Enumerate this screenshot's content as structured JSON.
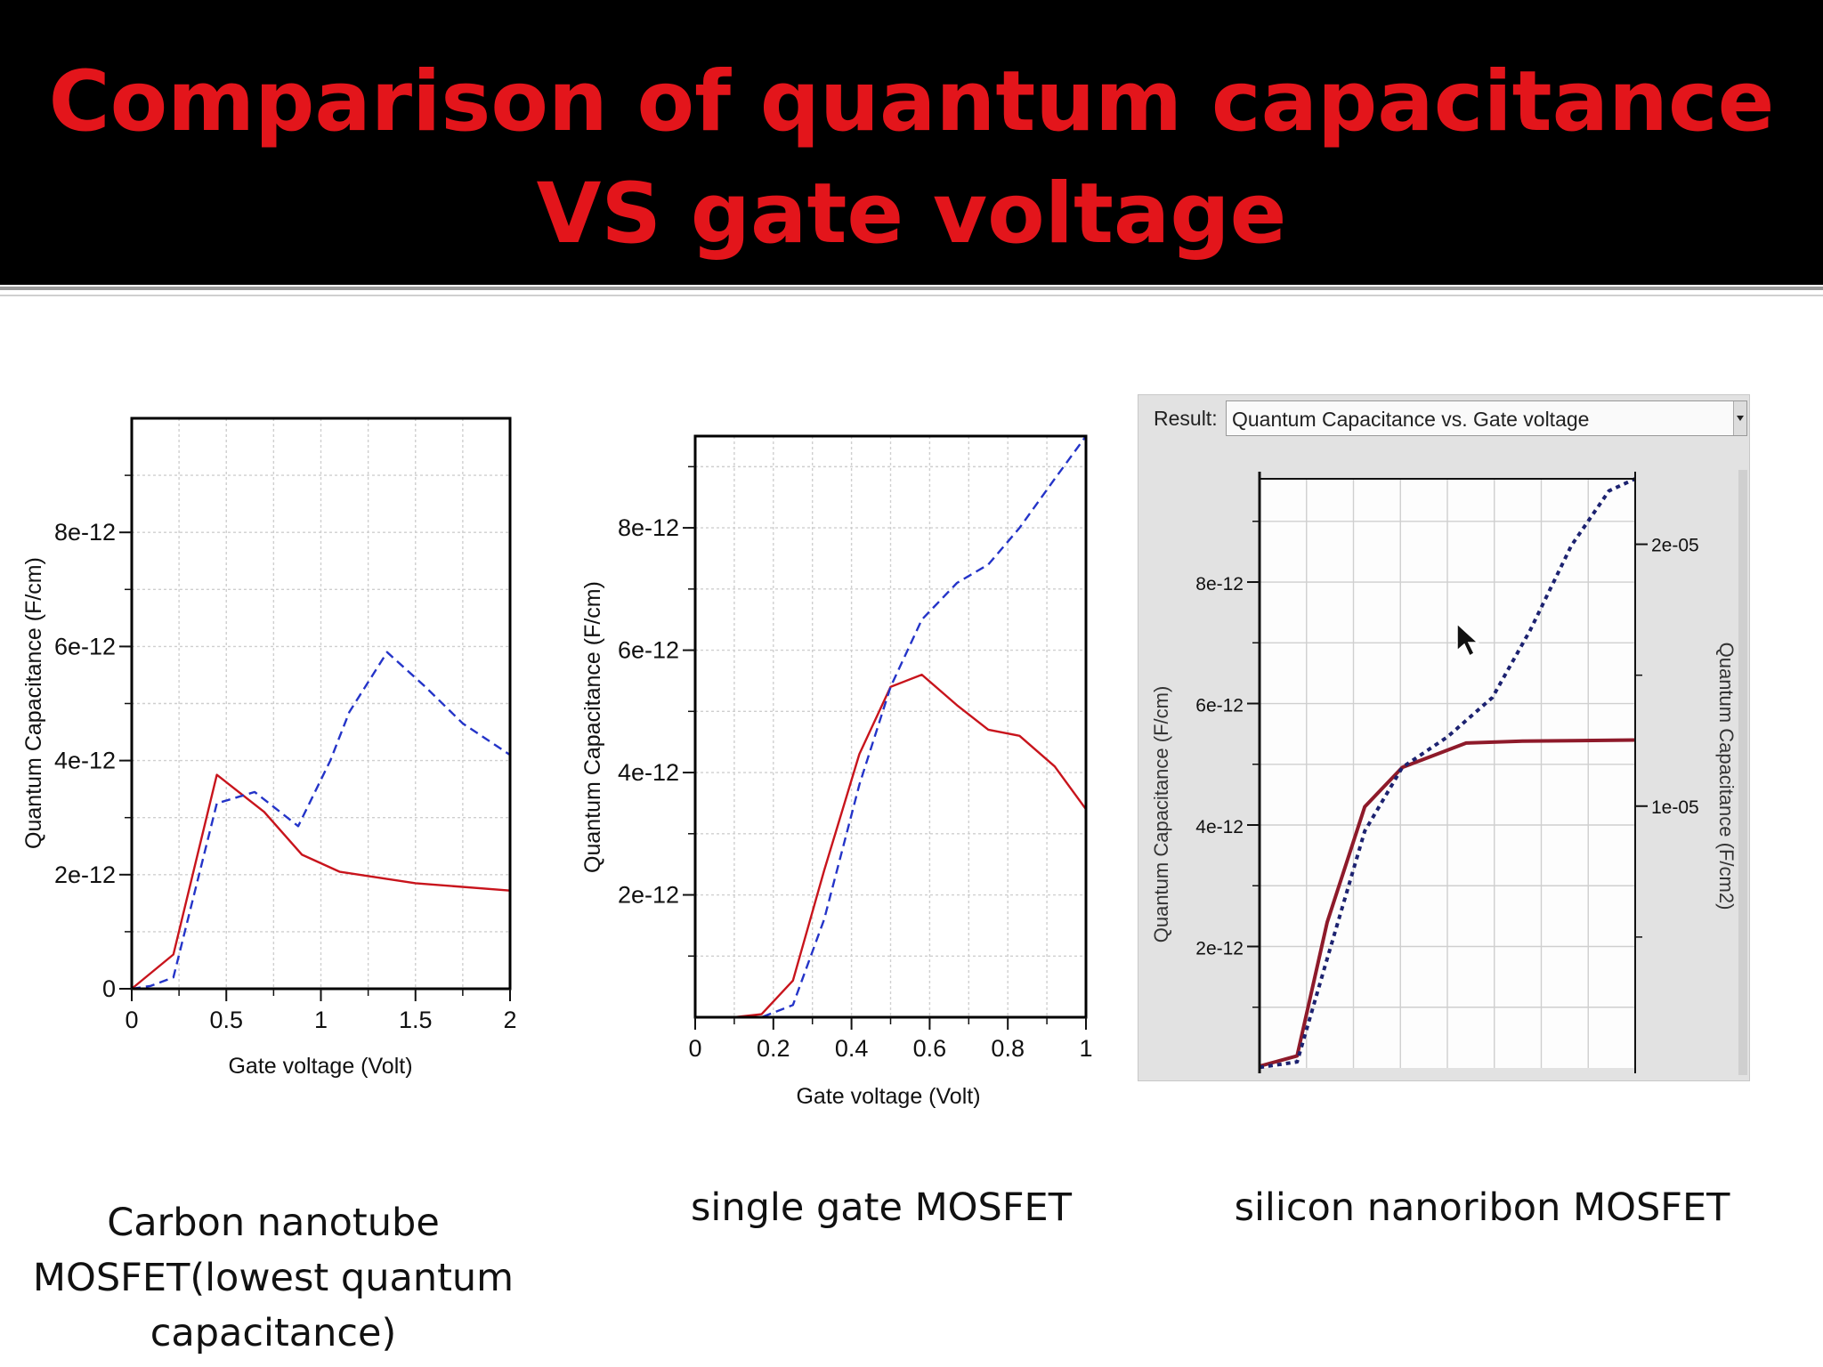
{
  "slide": {
    "title": "Comparison of quantum capacitance VS gate voltage",
    "title_color": "#e3151b",
    "background": "#000000"
  },
  "captions": [
    "Carbon nanotube MOSFET(lowest quantum capacitance)",
    "single gate MOSFET",
    "silicon nanoribon MOSFET"
  ],
  "chart_data": [
    {
      "type": "line",
      "xlabel": "Gate voltage (Volt)",
      "ylabel": "Quantum Capacitance (F/cm)",
      "xlim": [
        0,
        2
      ],
      "ylim": [
        0,
        1e-11
      ],
      "xticks": [
        "0",
        "0.5",
        "1",
        "1.5",
        "2"
      ],
      "xtick_values": [
        0,
        0.5,
        1,
        1.5,
        2
      ],
      "yticks": [
        "0",
        "2e-12",
        "4e-12",
        "6e-12",
        "8e-12"
      ],
      "ytick_values": [
        0,
        2e-12,
        4e-12,
        6e-12,
        8e-12
      ],
      "grid": true,
      "series": [
        {
          "style": "solid",
          "color": "#c8141c",
          "x": [
            0,
            0.22,
            0.45,
            0.7,
            0.9,
            1.1,
            1.5,
            2.0
          ],
          "y": [
            0,
            6e-13,
            3.75e-12,
            3.1e-12,
            2.35e-12,
            2.05e-12,
            1.85e-12,
            1.72e-12
          ]
        },
        {
          "style": "dashed",
          "color": "#2434c8",
          "x": [
            0,
            0.1,
            0.22,
            0.45,
            0.65,
            0.88,
            1.05,
            1.15,
            1.35,
            1.55,
            1.75,
            2.0
          ],
          "y": [
            0,
            5e-14,
            2e-13,
            3.25e-12,
            3.45e-12,
            2.85e-12,
            4e-12,
            4.85e-12,
            5.9e-12,
            5.3e-12,
            4.65e-12,
            4.1e-12
          ]
        }
      ]
    },
    {
      "type": "line",
      "xlabel": "Gate voltage (Volt)",
      "ylabel": "Quantum Capacitance (F/cm)",
      "xlim": [
        0,
        1
      ],
      "ylim": [
        0,
        9.5e-12
      ],
      "xticks": [
        "0",
        "0.2",
        "0.4",
        "0.6",
        "0.8",
        "1"
      ],
      "xtick_values": [
        0,
        0.2,
        0.4,
        0.6,
        0.8,
        1
      ],
      "yticks": [
        "2e-12",
        "4e-12",
        "6e-12",
        "8e-12"
      ],
      "ytick_values": [
        2e-12,
        4e-12,
        6e-12,
        8e-12
      ],
      "grid": true,
      "series": [
        {
          "style": "solid",
          "color": "#c8141c",
          "x": [
            0.1,
            0.17,
            0.25,
            0.33,
            0.42,
            0.5,
            0.58,
            0.67,
            0.75,
            0.83,
            0.92,
            1.0
          ],
          "y": [
            0,
            5e-14,
            6e-13,
            2.4e-12,
            4.3e-12,
            5.4e-12,
            5.6e-12,
            5.1e-12,
            4.7e-12,
            4.6e-12,
            4.1e-12,
            3.4e-12
          ]
        },
        {
          "style": "dashed",
          "color": "#2434c8",
          "x": [
            0.1,
            0.17,
            0.25,
            0.33,
            0.42,
            0.5,
            0.58,
            0.67,
            0.75,
            0.83,
            0.92,
            1.0
          ],
          "y": [
            0,
            0,
            2e-13,
            1.6e-12,
            3.8e-12,
            5.4e-12,
            6.5e-12,
            7.1e-12,
            7.4e-12,
            8e-12,
            8.8e-12,
            9.5e-12
          ]
        }
      ]
    },
    {
      "type": "line",
      "header_label": "Result:",
      "dropdown_value": "Quantum Capacitance vs. Gate voltage",
      "ylabel": "Quantum Capacitance (F/cm)",
      "y2label": "Quantum Capacitance (F/cm2)",
      "ylim": [
        0,
        9.7e-12
      ],
      "yticks": [
        "2e-12",
        "4e-12",
        "6e-12",
        "8e-12"
      ],
      "ytick_values": [
        2e-12,
        4e-12,
        6e-12,
        8e-12
      ],
      "y2lim": [
        0,
        2.25e-05
      ],
      "y2ticks": [
        "1e-05",
        "2e-05"
      ],
      "y2tick_values": [
        1e-05,
        2e-05
      ],
      "xlim": [
        0,
        1
      ],
      "grid": true,
      "series": [
        {
          "style": "solid",
          "color": "#8e1a2a",
          "axis": "left",
          "x": [
            0,
            0.1,
            0.18,
            0.28,
            0.38,
            0.55,
            0.7,
            1.0
          ],
          "y": [
            3e-14,
            2e-13,
            2.4e-12,
            4.3e-12,
            4.95e-12,
            5.35e-12,
            5.38e-12,
            5.4e-12
          ]
        },
        {
          "style": "dotted",
          "color": "#1c2270",
          "axis": "left",
          "x": [
            0,
            0.1,
            0.18,
            0.28,
            0.38,
            0.5,
            0.62,
            0.72,
            0.83,
            0.93,
            1.0
          ],
          "y": [
            1e-14,
            1e-13,
            1.8e-12,
            3.9e-12,
            4.95e-12,
            5.45e-12,
            6.1e-12,
            7.2e-12,
            8.6e-12,
            9.5e-12,
            9.7e-12
          ]
        }
      ],
      "cursor": "arrow-cursor-icon"
    }
  ]
}
